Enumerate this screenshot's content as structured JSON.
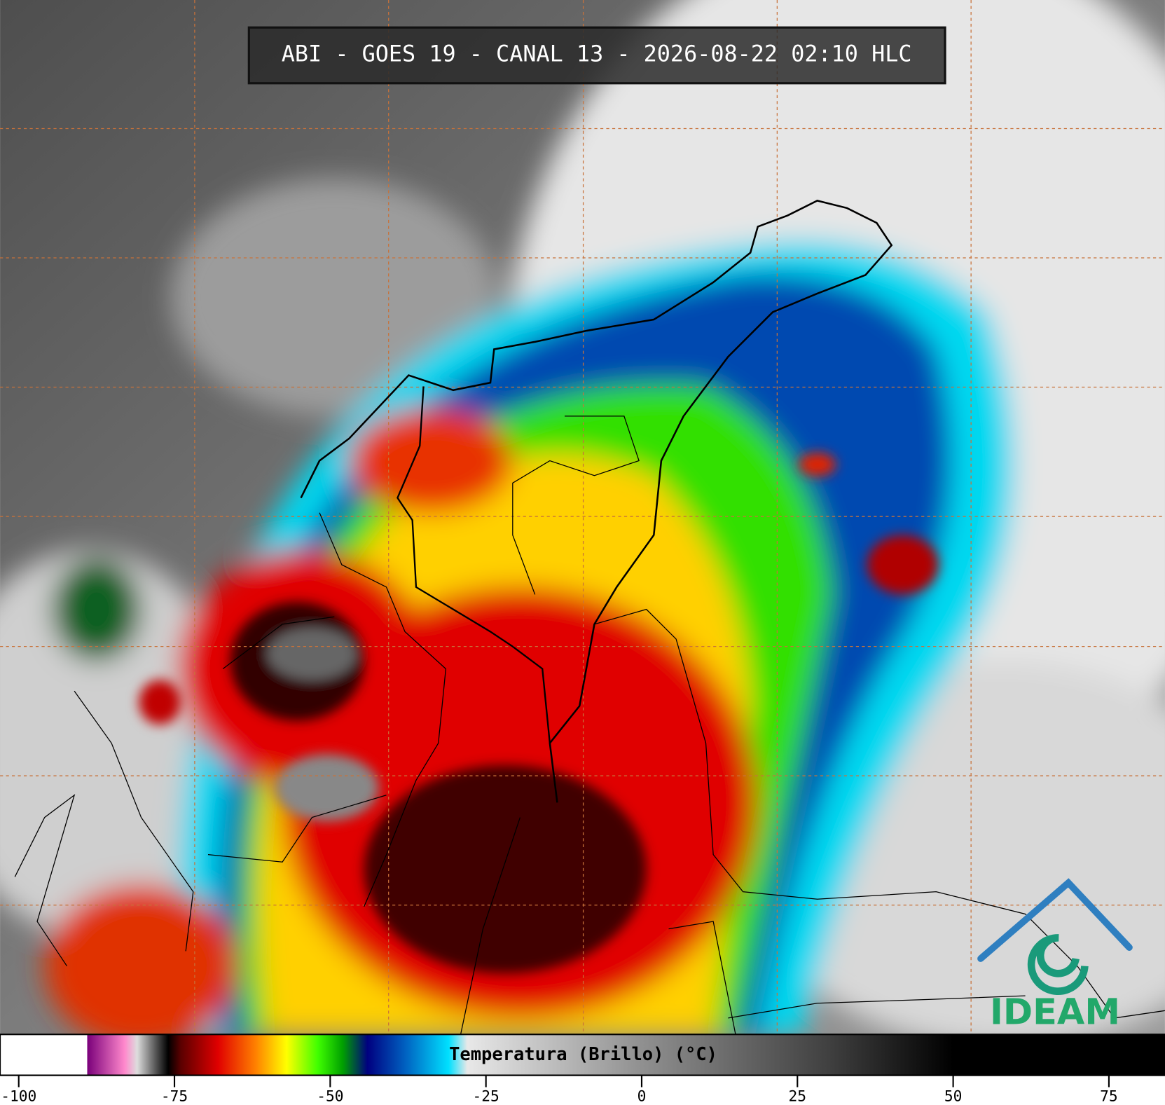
{
  "title": "ABI - GOES 19 - CANAL 13 - 2026-08-22 02:10 HLC",
  "colorbar": {
    "label": "Temperatura (Brillo) (°C)",
    "xlim": [
      -103,
      84
    ],
    "xticks": [
      -100,
      -75,
      -50,
      -25,
      0,
      25,
      50,
      75
    ],
    "colormap": [
      {
        "value": -103,
        "color": "#ffffff"
      },
      {
        "value": -89,
        "color": "#ffffff"
      },
      {
        "value": -89,
        "color": "#7a007a"
      },
      {
        "value": -83,
        "color": "#ff88cc"
      },
      {
        "value": -81,
        "color": "#dddddd"
      },
      {
        "value": -78,
        "color": "#555555"
      },
      {
        "value": -76,
        "color": "#000000"
      },
      {
        "value": -74,
        "color": "#5a0000"
      },
      {
        "value": -68,
        "color": "#e00000"
      },
      {
        "value": -62,
        "color": "#ff8000"
      },
      {
        "value": -57,
        "color": "#ffff00"
      },
      {
        "value": -52,
        "color": "#40ff00"
      },
      {
        "value": -48,
        "color": "#00a000"
      },
      {
        "value": -44,
        "color": "#000080"
      },
      {
        "value": -38,
        "color": "#0060c0"
      },
      {
        "value": -31,
        "color": "#00e0ff"
      },
      {
        "value": -28,
        "color": "#e8e8e8"
      },
      {
        "value": 0,
        "color": "#909090"
      },
      {
        "value": 30,
        "color": "#404040"
      },
      {
        "value": 50,
        "color": "#000000"
      },
      {
        "value": 84,
        "color": "#000000"
      }
    ]
  },
  "logo": {
    "text": "IDEAM"
  }
}
